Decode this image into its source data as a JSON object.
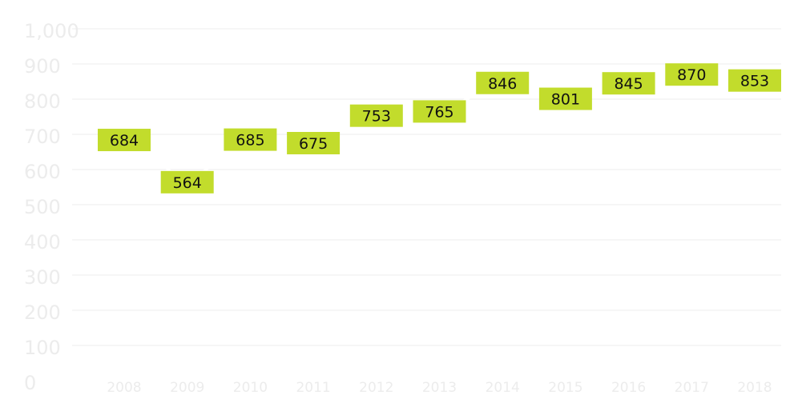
{
  "chart_data": {
    "type": "line",
    "categories": [
      "2008",
      "2009",
      "2010",
      "2011",
      "2012",
      "2013",
      "2014",
      "2015",
      "2016",
      "2017",
      "2018"
    ],
    "values": [
      684,
      564,
      685,
      675,
      753,
      765,
      846,
      801,
      845,
      870,
      853
    ],
    "y_ticks": [
      "0",
      "100",
      "200",
      "300",
      "400",
      "500",
      "600",
      "700",
      "800",
      "900",
      "1,000"
    ],
    "ylim": [
      0,
      1000
    ],
    "title": "",
    "xlabel": "",
    "ylabel": "",
    "grid": true,
    "legend": "none",
    "data_labels": true
  },
  "colors": {
    "label_fill": "#c2dc2c",
    "label_text": "#111111",
    "line": "#ffffff",
    "grid": "#eeeeee",
    "axis_text": "#ececec"
  }
}
